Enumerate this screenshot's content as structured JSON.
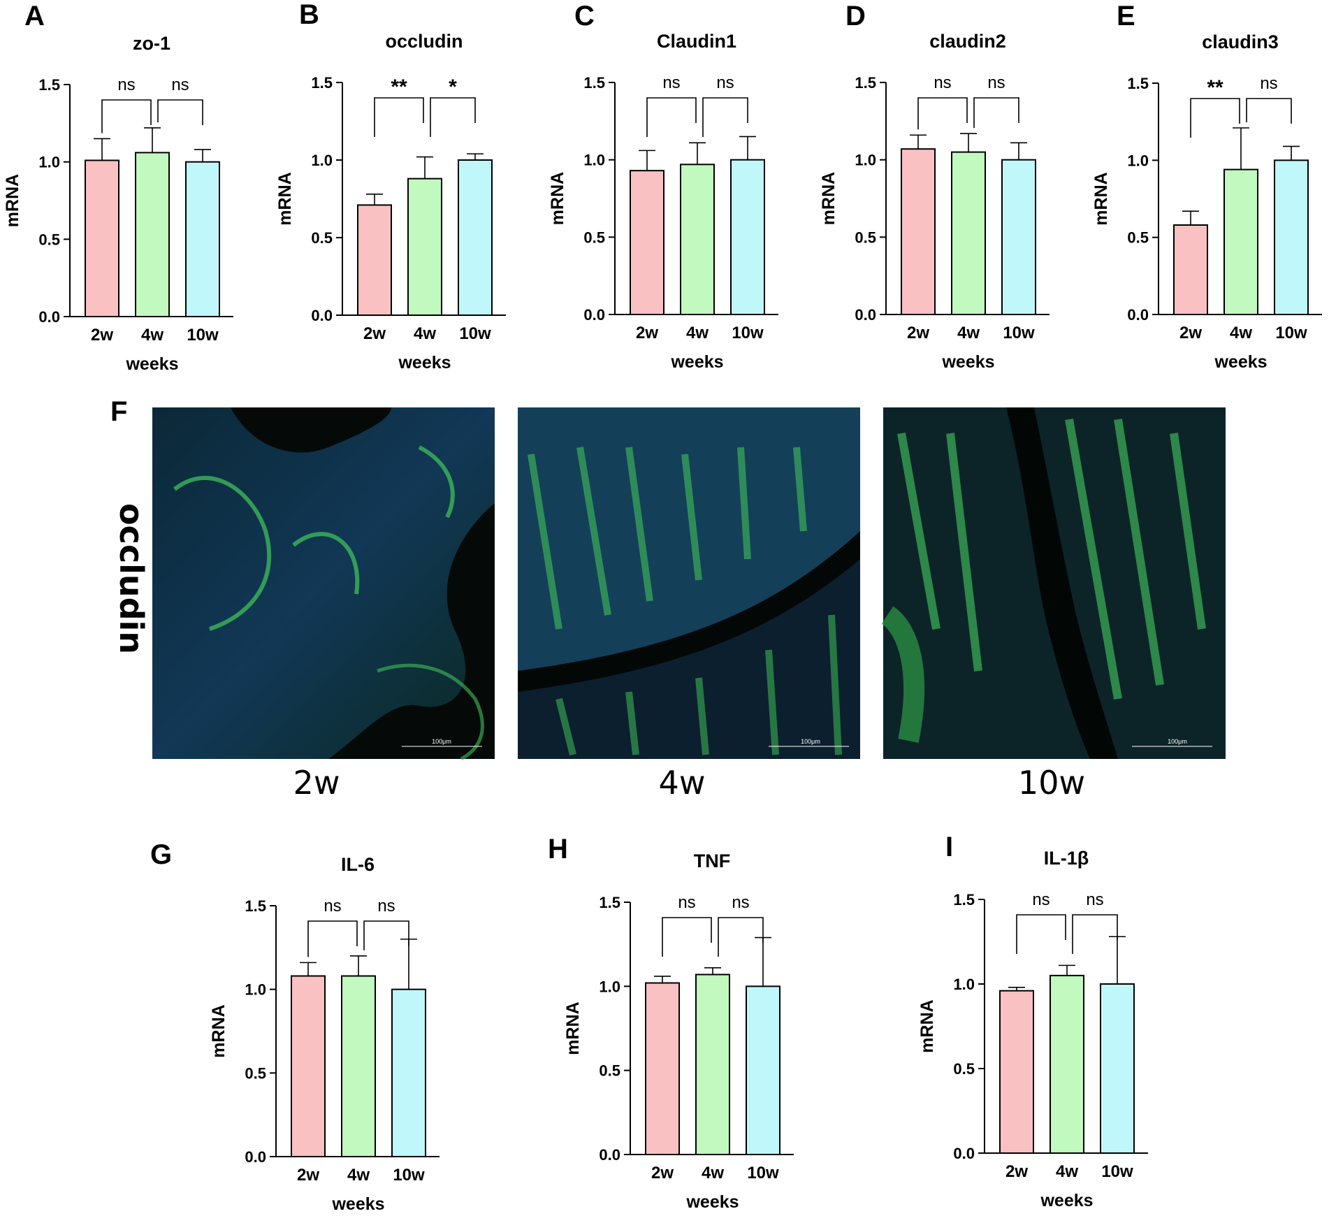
{
  "figure_labels": {
    "image_panel_letter": "F",
    "image_row_label": "occludin",
    "scale_bar_text": "100μm",
    "image_captions": [
      "2w",
      "4w",
      "10w"
    ]
  },
  "colors": {
    "bar_2w": "#f9c1c1",
    "bar_4w": "#c1f9bf",
    "bar_10w": "#bff7fa",
    "axis": "#000000"
  },
  "chart_data": [
    {
      "type": "bar",
      "panel_letter": "A",
      "title": "zo-1",
      "categories": [
        "2w",
        "4w",
        "10w"
      ],
      "values": [
        1.01,
        1.06,
        1.0
      ],
      "errors": [
        0.14,
        0.16,
        0.08
      ],
      "xlabel": "weeks",
      "ylabel": "mRNA",
      "ylim": [
        0,
        1.5
      ],
      "yticks": [
        "0.0",
        "0.5",
        "1.0",
        "1.5"
      ],
      "significance": [
        {
          "from": 0,
          "to": 1,
          "label": "ns"
        },
        {
          "from": 1,
          "to": 2,
          "label": "ns"
        }
      ],
      "grid": false,
      "legend": "none"
    },
    {
      "type": "bar",
      "panel_letter": "B",
      "title": "occludin",
      "categories": [
        "2w",
        "4w",
        "10w"
      ],
      "values": [
        0.71,
        0.88,
        1.0
      ],
      "errors": [
        0.07,
        0.14,
        0.04
      ],
      "xlabel": "weeks",
      "ylabel": "mRNA",
      "ylim": [
        0,
        1.5
      ],
      "yticks": [
        "0.0",
        "0.5",
        "1.0",
        "1.5"
      ],
      "significance": [
        {
          "from": 0,
          "to": 1,
          "label": "**"
        },
        {
          "from": 1,
          "to": 2,
          "label": "*"
        }
      ],
      "grid": false,
      "legend": "none"
    },
    {
      "type": "bar",
      "panel_letter": "C",
      "title": "Claudin1",
      "categories": [
        "2w",
        "4w",
        "10w"
      ],
      "values": [
        0.93,
        0.97,
        1.0
      ],
      "errors": [
        0.13,
        0.14,
        0.15
      ],
      "xlabel": "weeks",
      "ylabel": "mRNA",
      "ylim": [
        0,
        1.5
      ],
      "yticks": [
        "0.0",
        "0.5",
        "1.0",
        "1.5"
      ],
      "significance": [
        {
          "from": 0,
          "to": 1,
          "label": "ns"
        },
        {
          "from": 1,
          "to": 2,
          "label": "ns"
        }
      ],
      "grid": false,
      "legend": "none"
    },
    {
      "type": "bar",
      "panel_letter": "D",
      "title": "claudin2",
      "categories": [
        "2w",
        "4w",
        "10w"
      ],
      "values": [
        1.07,
        1.05,
        1.0
      ],
      "errors": [
        0.09,
        0.12,
        0.11
      ],
      "xlabel": "weeks",
      "ylabel": "mRNA",
      "ylim": [
        0,
        1.5
      ],
      "yticks": [
        "0.0",
        "0.5",
        "1.0",
        "1.5"
      ],
      "significance": [
        {
          "from": 0,
          "to": 1,
          "label": "ns"
        },
        {
          "from": 1,
          "to": 2,
          "label": "ns"
        }
      ],
      "grid": false,
      "legend": "none"
    },
    {
      "type": "bar",
      "panel_letter": "E",
      "title": "claudin3",
      "categories": [
        "2w",
        "4w",
        "10w"
      ],
      "values": [
        0.58,
        0.94,
        1.0
      ],
      "errors": [
        0.09,
        0.27,
        0.09
      ],
      "xlabel": "weeks",
      "ylabel": "mRNA",
      "ylim": [
        0,
        1.5
      ],
      "yticks": [
        "0.0",
        "0.5",
        "1.0",
        "1.5"
      ],
      "significance": [
        {
          "from": 0,
          "to": 1,
          "label": "**"
        },
        {
          "from": 1,
          "to": 2,
          "label": "ns"
        }
      ],
      "grid": false,
      "legend": "none"
    },
    {
      "type": "bar",
      "panel_letter": "G",
      "title": "IL-6",
      "categories": [
        "2w",
        "4w",
        "10w"
      ],
      "values": [
        1.08,
        1.08,
        1.0
      ],
      "errors": [
        0.08,
        0.12,
        0.3
      ],
      "xlabel": "weeks",
      "ylabel": "mRNA",
      "ylim": [
        0,
        1.5
      ],
      "yticks": [
        "0.0",
        "0.5",
        "1.0",
        "1.5"
      ],
      "significance": [
        {
          "from": 0,
          "to": 1,
          "label": "ns"
        },
        {
          "from": 1,
          "to": 2,
          "label": "ns"
        }
      ],
      "grid": false,
      "legend": "none"
    },
    {
      "type": "bar",
      "panel_letter": "H",
      "title": "TNF",
      "categories": [
        "2w",
        "4w",
        "10w"
      ],
      "values": [
        1.02,
        1.07,
        1.0
      ],
      "errors": [
        0.04,
        0.04,
        0.29
      ],
      "xlabel": "weeks",
      "ylabel": "mRNA",
      "ylim": [
        0,
        1.5
      ],
      "yticks": [
        "0.0",
        "0.5",
        "1.0",
        "1.5"
      ],
      "significance": [
        {
          "from": 0,
          "to": 1,
          "label": "ns"
        },
        {
          "from": 1,
          "to": 2,
          "label": "ns"
        }
      ],
      "grid": false,
      "legend": "none"
    },
    {
      "type": "bar",
      "panel_letter": "I",
      "title": "IL-1β",
      "categories": [
        "2w",
        "4w",
        "10w"
      ],
      "values": [
        0.96,
        1.05,
        1.0
      ],
      "errors": [
        0.02,
        0.06,
        0.28
      ],
      "xlabel": "weeks",
      "ylabel": "mRNA",
      "ylim": [
        0,
        1.5
      ],
      "yticks": [
        "0.0",
        "0.5",
        "1.0",
        "1.5"
      ],
      "significance": [
        {
          "from": 0,
          "to": 1,
          "label": "ns"
        },
        {
          "from": 1,
          "to": 2,
          "label": "ns"
        }
      ],
      "grid": false,
      "legend": "none"
    }
  ]
}
